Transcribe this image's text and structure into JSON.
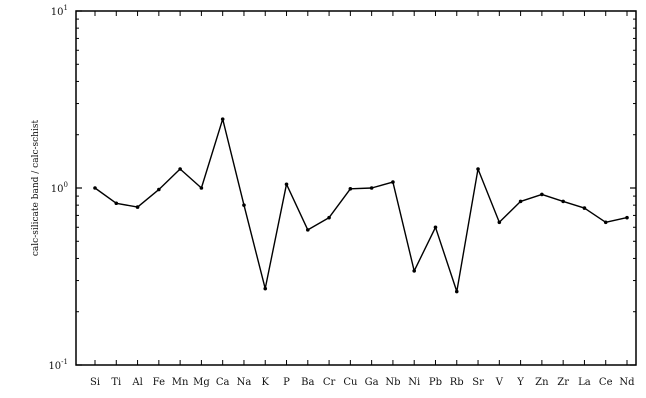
{
  "chart_data": {
    "type": "line",
    "title": "",
    "xlabel": "",
    "ylabel": "calc-silicate band / calc-schist",
    "yscale": "log",
    "ylim": [
      0.1,
      10
    ],
    "yticks": [
      {
        "value": 10,
        "base": "10",
        "exp": "1"
      },
      {
        "value": 1,
        "base": "10",
        "exp": "0"
      },
      {
        "value": 0.1,
        "base": "10",
        "exp": "-1"
      }
    ],
    "grid": false,
    "legend": "none",
    "categories": [
      "Si",
      "Ti",
      "Al",
      "Fe",
      "Mn",
      "Mg",
      "Ca",
      "Na",
      "K",
      "P",
      "Ba",
      "Cr",
      "Cu",
      "Ga",
      "Nb",
      "Ni",
      "Pb",
      "Rb",
      "Sr",
      "V",
      "Y",
      "Zn",
      "Zr",
      "La",
      "Ce",
      "Nd"
    ],
    "series": [
      {
        "values": [
          1.0,
          0.82,
          0.78,
          0.98,
          1.28,
          1.0,
          2.45,
          0.8,
          0.27,
          1.05,
          0.58,
          0.68,
          0.99,
          1.0,
          1.08,
          0.34,
          0.6,
          0.26,
          1.28,
          0.64,
          0.84,
          0.92,
          0.84,
          0.77,
          0.64,
          0.68
        ]
      }
    ],
    "colors": {
      "line": "#000000",
      "axis": "#000000"
    }
  }
}
